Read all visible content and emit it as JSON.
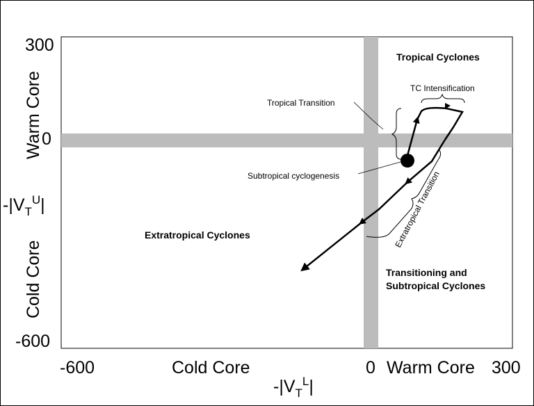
{
  "x_axis": {
    "min_label": "-600",
    "zero_label": "0",
    "max_label": "300",
    "cold_label": "Cold Core",
    "warm_label": "Warm Core",
    "title": "-|V",
    "title_sub": "T",
    "title_sup": "L",
    "title_end": "|"
  },
  "y_axis": {
    "max_label": "300",
    "zero_label": "0",
    "min_label": "-600",
    "warm_label": "Warm Core",
    "cold_label": "Cold Core",
    "title": "-|V",
    "title_sub": "T",
    "title_sup": "U",
    "title_end": "|"
  },
  "regions": {
    "tropical": "Tropical Cyclones",
    "extratropical": "Extratropical Cyclones",
    "transitioning_line1": "Transitioning and",
    "transitioning_line2": "Subtropical Cyclones"
  },
  "annotations": {
    "tc_intensification": "TC Intensification",
    "tropical_transition": "Tropical Transition",
    "subtropical_cyclogenesis": "Subtropical cyclogenesis",
    "extratropical_transition": "Extratropical Transition"
  },
  "colors": {
    "zero_band": "#bcbcbc",
    "line": "#000000"
  }
}
